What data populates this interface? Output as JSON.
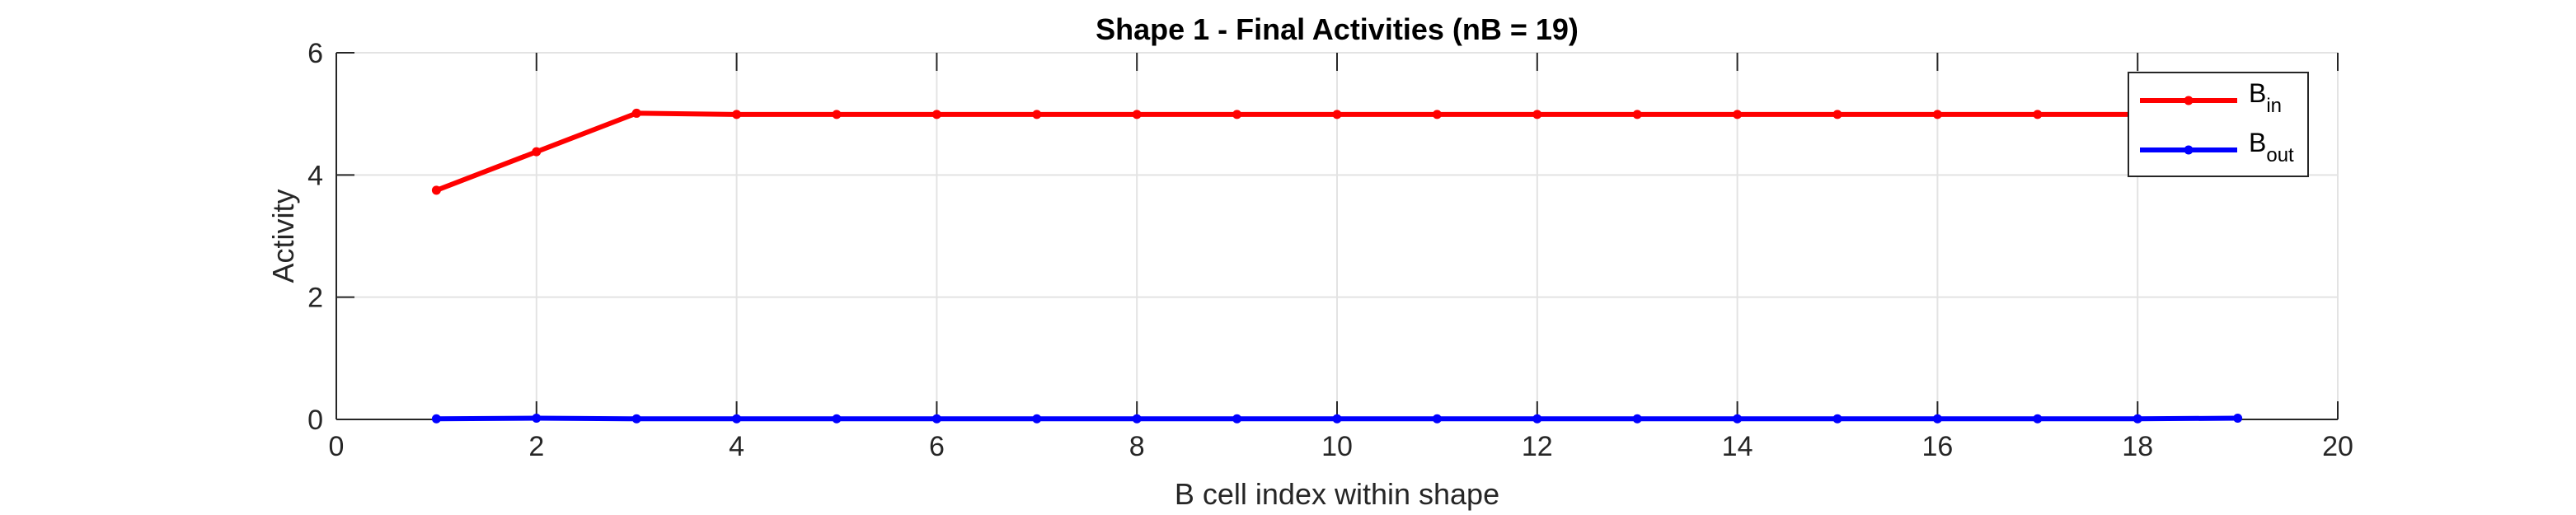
{
  "chart_data": {
    "type": "line",
    "title": "Shape 1 - Final Activities (nB = 19)",
    "xlabel": "B cell index within shape",
    "ylabel": "Activity",
    "xlim": [
      0,
      20
    ],
    "ylim": [
      0,
      6
    ],
    "xticks": [
      0,
      2,
      4,
      6,
      8,
      10,
      12,
      14,
      16,
      18,
      20
    ],
    "yticks": [
      0,
      2,
      4,
      6
    ],
    "grid": true,
    "legend_position": "top-right",
    "x": [
      1,
      2,
      3,
      4,
      5,
      6,
      7,
      8,
      9,
      10,
      11,
      12,
      13,
      14,
      15,
      16,
      17,
      18,
      19
    ],
    "series": [
      {
        "name": "B",
        "subscript": "in",
        "color": "#ff0000",
        "values": [
          3.75,
          4.38,
          5.01,
          4.99,
          4.99,
          4.99,
          4.99,
          4.99,
          4.99,
          4.99,
          4.99,
          4.99,
          4.99,
          4.99,
          4.99,
          4.99,
          4.99,
          4.99,
          4.99
        ]
      },
      {
        "name": "B",
        "subscript": "out",
        "color": "#0000ff",
        "values": [
          0.01,
          0.02,
          0.01,
          0.01,
          0.01,
          0.01,
          0.01,
          0.01,
          0.01,
          0.01,
          0.01,
          0.01,
          0.01,
          0.01,
          0.01,
          0.01,
          0.01,
          0.01,
          0.02
        ]
      }
    ]
  }
}
